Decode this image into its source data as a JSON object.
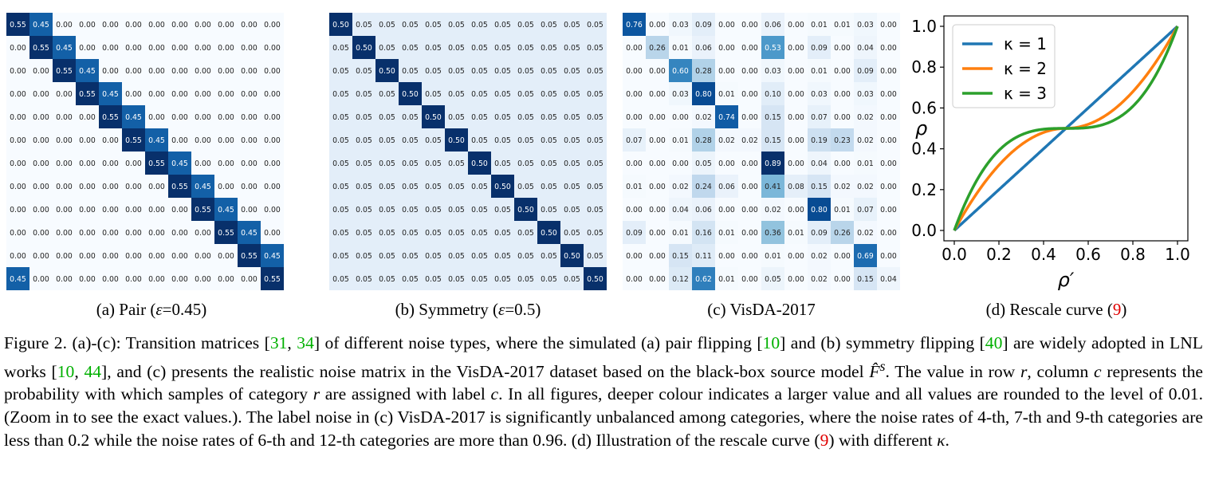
{
  "panels": {
    "a": {
      "caption_pre": "(a)  Pair (",
      "caption_sym": "ε",
      "caption_post": "=0.45)",
      "matrix": [
        [
          0.55,
          0.45,
          0.0,
          0.0,
          0.0,
          0.0,
          0.0,
          0.0,
          0.0,
          0.0,
          0.0,
          0.0
        ],
        [
          0.0,
          0.55,
          0.45,
          0.0,
          0.0,
          0.0,
          0.0,
          0.0,
          0.0,
          0.0,
          0.0,
          0.0
        ],
        [
          0.0,
          0.0,
          0.55,
          0.45,
          0.0,
          0.0,
          0.0,
          0.0,
          0.0,
          0.0,
          0.0,
          0.0
        ],
        [
          0.0,
          0.0,
          0.0,
          0.55,
          0.45,
          0.0,
          0.0,
          0.0,
          0.0,
          0.0,
          0.0,
          0.0
        ],
        [
          0.0,
          0.0,
          0.0,
          0.0,
          0.55,
          0.45,
          0.0,
          0.0,
          0.0,
          0.0,
          0.0,
          0.0
        ],
        [
          0.0,
          0.0,
          0.0,
          0.0,
          0.0,
          0.55,
          0.45,
          0.0,
          0.0,
          0.0,
          0.0,
          0.0
        ],
        [
          0.0,
          0.0,
          0.0,
          0.0,
          0.0,
          0.0,
          0.55,
          0.45,
          0.0,
          0.0,
          0.0,
          0.0
        ],
        [
          0.0,
          0.0,
          0.0,
          0.0,
          0.0,
          0.0,
          0.0,
          0.55,
          0.45,
          0.0,
          0.0,
          0.0
        ],
        [
          0.0,
          0.0,
          0.0,
          0.0,
          0.0,
          0.0,
          0.0,
          0.0,
          0.55,
          0.45,
          0.0,
          0.0
        ],
        [
          0.0,
          0.0,
          0.0,
          0.0,
          0.0,
          0.0,
          0.0,
          0.0,
          0.0,
          0.55,
          0.45,
          0.0
        ],
        [
          0.0,
          0.0,
          0.0,
          0.0,
          0.0,
          0.0,
          0.0,
          0.0,
          0.0,
          0.0,
          0.55,
          0.45
        ],
        [
          0.45,
          0.0,
          0.0,
          0.0,
          0.0,
          0.0,
          0.0,
          0.0,
          0.0,
          0.0,
          0.0,
          0.55
        ]
      ]
    },
    "b": {
      "caption_pre": "(b)  Symmetry (",
      "caption_sym": "ε",
      "caption_post": "=0.5)",
      "matrix": [
        [
          0.5,
          0.05,
          0.05,
          0.05,
          0.05,
          0.05,
          0.05,
          0.05,
          0.05,
          0.05,
          0.05,
          0.05
        ],
        [
          0.05,
          0.5,
          0.05,
          0.05,
          0.05,
          0.05,
          0.05,
          0.05,
          0.05,
          0.05,
          0.05,
          0.05
        ],
        [
          0.05,
          0.05,
          0.5,
          0.05,
          0.05,
          0.05,
          0.05,
          0.05,
          0.05,
          0.05,
          0.05,
          0.05
        ],
        [
          0.05,
          0.05,
          0.05,
          0.5,
          0.05,
          0.05,
          0.05,
          0.05,
          0.05,
          0.05,
          0.05,
          0.05
        ],
        [
          0.05,
          0.05,
          0.05,
          0.05,
          0.5,
          0.05,
          0.05,
          0.05,
          0.05,
          0.05,
          0.05,
          0.05
        ],
        [
          0.05,
          0.05,
          0.05,
          0.05,
          0.05,
          0.5,
          0.05,
          0.05,
          0.05,
          0.05,
          0.05,
          0.05
        ],
        [
          0.05,
          0.05,
          0.05,
          0.05,
          0.05,
          0.05,
          0.5,
          0.05,
          0.05,
          0.05,
          0.05,
          0.05
        ],
        [
          0.05,
          0.05,
          0.05,
          0.05,
          0.05,
          0.05,
          0.05,
          0.5,
          0.05,
          0.05,
          0.05,
          0.05
        ],
        [
          0.05,
          0.05,
          0.05,
          0.05,
          0.05,
          0.05,
          0.05,
          0.05,
          0.5,
          0.05,
          0.05,
          0.05
        ],
        [
          0.05,
          0.05,
          0.05,
          0.05,
          0.05,
          0.05,
          0.05,
          0.05,
          0.05,
          0.5,
          0.05,
          0.05
        ],
        [
          0.05,
          0.05,
          0.05,
          0.05,
          0.05,
          0.05,
          0.05,
          0.05,
          0.05,
          0.05,
          0.5,
          0.05
        ],
        [
          0.05,
          0.05,
          0.05,
          0.05,
          0.05,
          0.05,
          0.05,
          0.05,
          0.05,
          0.05,
          0.05,
          0.5
        ]
      ]
    },
    "c": {
      "caption": "(c)  VisDA-2017",
      "matrix": [
        [
          0.76,
          0.0,
          0.03,
          0.09,
          0.0,
          0.0,
          0.06,
          0.0,
          0.01,
          0.01,
          0.03,
          0.0
        ],
        [
          0.0,
          0.26,
          0.01,
          0.06,
          0.0,
          0.0,
          0.53,
          0.0,
          0.09,
          0.0,
          0.04,
          0.0
        ],
        [
          0.0,
          0.0,
          0.6,
          0.28,
          0.0,
          0.0,
          0.03,
          0.0,
          0.01,
          0.0,
          0.09,
          0.0
        ],
        [
          0.0,
          0.0,
          0.03,
          0.8,
          0.01,
          0.0,
          0.1,
          0.0,
          0.03,
          0.0,
          0.03,
          0.0
        ],
        [
          0.0,
          0.0,
          0.0,
          0.02,
          0.74,
          0.0,
          0.15,
          0.0,
          0.07,
          0.0,
          0.02,
          0.0
        ],
        [
          0.07,
          0.0,
          0.01,
          0.28,
          0.02,
          0.02,
          0.15,
          0.0,
          0.19,
          0.23,
          0.02,
          0.0
        ],
        [
          0.0,
          0.0,
          0.0,
          0.05,
          0.0,
          0.0,
          0.89,
          0.0,
          0.04,
          0.0,
          0.01,
          0.0
        ],
        [
          0.01,
          0.0,
          0.02,
          0.24,
          0.06,
          0.0,
          0.41,
          0.08,
          0.15,
          0.02,
          0.02,
          0.0
        ],
        [
          0.0,
          0.0,
          0.04,
          0.06,
          0.0,
          0.0,
          0.02,
          0.0,
          0.8,
          0.01,
          0.07,
          0.0
        ],
        [
          0.09,
          0.0,
          0.01,
          0.16,
          0.01,
          0.0,
          0.36,
          0.01,
          0.09,
          0.26,
          0.02,
          0.0
        ],
        [
          0.0,
          0.0,
          0.15,
          0.11,
          0.0,
          0.0,
          0.01,
          0.0,
          0.02,
          0.0,
          0.69,
          0.0
        ],
        [
          0.0,
          0.0,
          0.12,
          0.62,
          0.01,
          0.0,
          0.05,
          0.0,
          0.02,
          0.0,
          0.15,
          0.04
        ]
      ]
    },
    "d": {
      "caption_pre": "(d)  Rescale curve (",
      "caption_ref": "9",
      "caption_post": ")"
    }
  },
  "chart_data": {
    "type": "line",
    "xlabel": "ρ′",
    "ylabel": "ρ",
    "xlim": [
      0,
      1
    ],
    "ylim": [
      0,
      1
    ],
    "xticks": [
      "0.0",
      "0.2",
      "0.4",
      "0.6",
      "0.8",
      "1.0"
    ],
    "yticks": [
      "0.0",
      "0.2",
      "0.4",
      "0.6",
      "0.8",
      "1.0"
    ],
    "legend_position": "top-left",
    "series": [
      {
        "name": "κ = 1",
        "kappa": 1,
        "color": "#1f77b4",
        "x": [
          0,
          0.1,
          0.2,
          0.3,
          0.4,
          0.5,
          0.6,
          0.7,
          0.8,
          0.9,
          1.0
        ],
        "y": [
          0,
          0.1,
          0.2,
          0.3,
          0.4,
          0.5,
          0.6,
          0.7,
          0.8,
          0.9,
          1.0
        ]
      },
      {
        "name": "κ = 2",
        "kappa": 2,
        "color": "#ff7f0e",
        "x": [
          0,
          0.1,
          0.2,
          0.3,
          0.4,
          0.5,
          0.6,
          0.7,
          0.8,
          0.9,
          1.0
        ],
        "y": [
          0,
          0.22,
          0.32,
          0.39,
          0.45,
          0.5,
          0.55,
          0.61,
          0.68,
          0.78,
          1.0
        ]
      },
      {
        "name": "κ = 3",
        "kappa": 3,
        "color": "#2ca02c",
        "x": [
          0,
          0.1,
          0.2,
          0.3,
          0.4,
          0.5,
          0.6,
          0.7,
          0.8,
          0.9,
          1.0
        ],
        "y": [
          0,
          0.29,
          0.37,
          0.43,
          0.47,
          0.5,
          0.53,
          0.57,
          0.63,
          0.71,
          1.0
        ]
      }
    ]
  },
  "colors": {
    "heat_low": "#f7fbff",
    "heat_high": "#08306b",
    "citation": "#00b000",
    "reference": "#e00000"
  },
  "caption": {
    "label": "Figure 2.",
    "t1": " (a)-(c): Transition matrices [",
    "c1": "31",
    "t2": ", ",
    "c2": "34",
    "t3": "] of different noise types, where the simulated (a) pair flipping [",
    "c3": "10",
    "t4": "] and (b) symmetry flipping [",
    "c4": "40",
    "t5": "] are widely adopted in LNL works [",
    "c5": "10",
    "t6": ", ",
    "c6": "44",
    "t7": "], and (c) presents the realistic noise matrix in the VisDA-2017 dataset based on the black-box source model ",
    "m1": "F̂",
    "m1sup": "s",
    "t8": ". The value in row ",
    "m2": "r",
    "t9": ", column ",
    "m3": "c",
    "t10": " represents the probability with which samples of category ",
    "m4": "r",
    "t11": " are assigned with label ",
    "m5": "c",
    "t12": ". In all figures, deeper colour indicates a larger value and all values are rounded to the level of 0.01. (Zoom in to see the exact values.). The label noise in (c) VisDA-2017 is significantly unbalanced among categories, where the noise rates of 4-th, 7-th and 9-th categories are less than 0.2 while the noise rates of 6-th and 12-th categories are more than 0.96. (d) Illustration of the rescale curve (",
    "r1": "9",
    "t13": ") with different ",
    "m6": "κ",
    "t14": "."
  }
}
